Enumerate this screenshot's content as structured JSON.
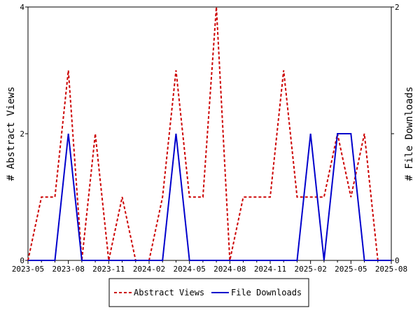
{
  "chart_data": {
    "type": "line",
    "x_tick_labels": [
      "2023-05",
      "2023-08",
      "2023-11",
      "2024-02",
      "2024-05",
      "2024-08",
      "2024-11",
      "2025-02",
      "2025-05",
      "2025-08"
    ],
    "x_tick_months": [
      0,
      3,
      6,
      9,
      12,
      15,
      18,
      21,
      24,
      27
    ],
    "x_month_labels": [
      "2023-05",
      "2023-06",
      "2023-07",
      "2023-08",
      "2023-09",
      "2023-10",
      "2023-11",
      "2023-12",
      "2024-01",
      "2024-02",
      "2024-03",
      "2024-04",
      "2024-05",
      "2024-06",
      "2024-07",
      "2024-08",
      "2024-09",
      "2024-10",
      "2024-11",
      "2024-12",
      "2025-01",
      "2025-02",
      "2025-03",
      "2025-04",
      "2025-05",
      "2025-06",
      "2025-07",
      "2025-08"
    ],
    "xlim": [
      0,
      27
    ],
    "y_left": {
      "label": "# Abstract Views",
      "lim": [
        0,
        4
      ],
      "ticks": [
        0,
        2,
        4
      ]
    },
    "y_right": {
      "label": "# File Downloads",
      "lim": [
        0,
        2
      ],
      "ticks": [
        0,
        1,
        2
      ],
      "tick_labels": [
        "0",
        "",
        "2"
      ]
    },
    "series": [
      {
        "name": "Abstract Views",
        "axis": "left",
        "color": "#cc0000",
        "style": "dashed",
        "values": [
          0,
          1,
          1,
          3,
          0,
          2,
          0,
          1,
          0,
          0,
          1,
          3,
          1,
          1,
          4,
          0,
          1,
          1,
          1,
          3,
          1,
          1,
          1,
          2,
          1,
          2,
          0,
          0
        ]
      },
      {
        "name": "File Downloads",
        "axis": "right",
        "color": "#0000cc",
        "style": "solid",
        "values": [
          0,
          0,
          0,
          1,
          0,
          0,
          0,
          0,
          0,
          0,
          0,
          1,
          0,
          0,
          0,
          0,
          0,
          0,
          0,
          0,
          0,
          1,
          0,
          1,
          1,
          0,
          0,
          0
        ]
      }
    ],
    "grid": false,
    "legend_position": "bottom"
  }
}
